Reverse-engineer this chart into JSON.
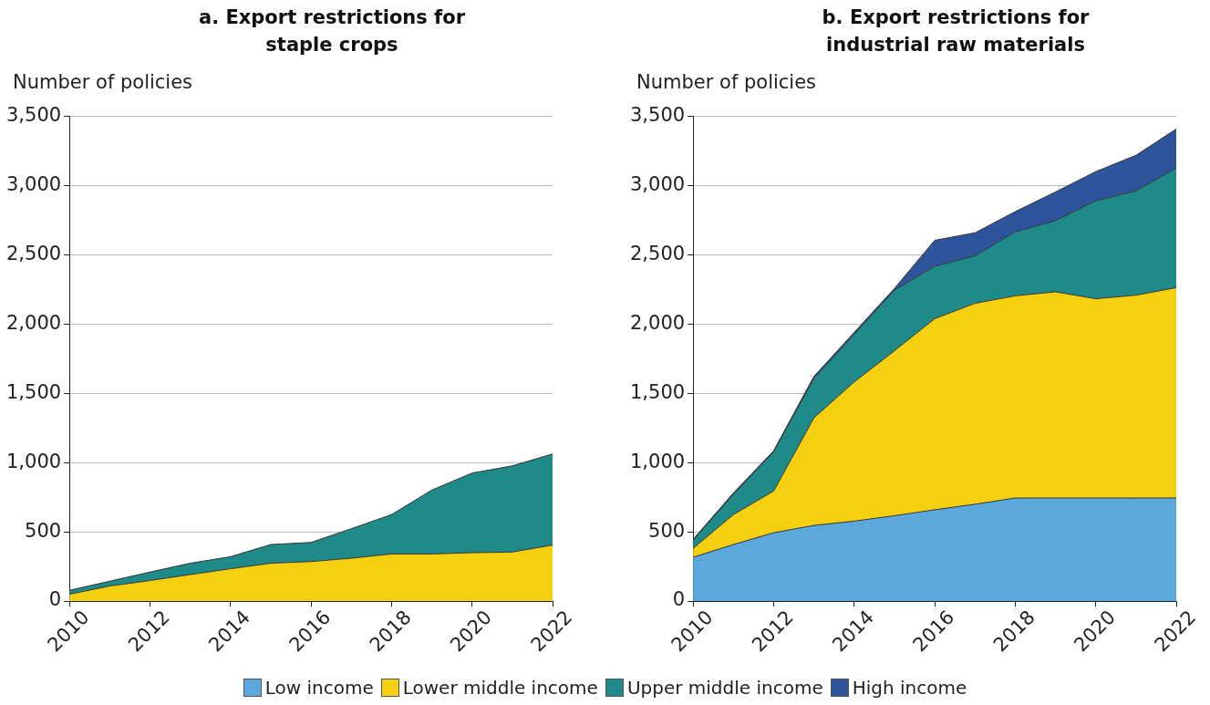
{
  "chart_data": [
    {
      "type": "area",
      "title": "a. Export restrictions for staple crops",
      "ylabel": "Number of policies",
      "x": [
        2010,
        2011,
        2012,
        2013,
        2014,
        2015,
        2016,
        2017,
        2018,
        2019,
        2020,
        2021,
        2022
      ],
      "xlim": [
        2010,
        2022
      ],
      "xticks": [
        2010,
        2012,
        2014,
        2016,
        2018,
        2020,
        2022
      ],
      "ylim": [
        0,
        3500
      ],
      "yticks": [
        {
          "value": 0,
          "label": "0"
        },
        {
          "value": 500,
          "label": "500"
        },
        {
          "value": 1000,
          "label": "1,000"
        },
        {
          "value": 1500,
          "label": "1,500"
        },
        {
          "value": 2000,
          "label": "2,000"
        },
        {
          "value": 2500,
          "label": "2,500"
        },
        {
          "value": 3000,
          "label": "3,000"
        },
        {
          "value": 3500,
          "label": "3,500"
        }
      ],
      "stacked": true,
      "grid": "y",
      "legend": "bottom",
      "series": [
        {
          "name": "Lower middle income",
          "color": "#f4d010",
          "values": [
            49,
            108,
            148,
            191,
            233,
            273,
            285,
            309,
            340,
            340,
            349,
            354,
            404
          ]
        },
        {
          "name": "Upper middle income",
          "color": "#1f8a8a",
          "values": [
            28,
            35,
            61,
            82,
            87,
            135,
            138,
            213,
            284,
            461,
            575,
            622,
            658
          ]
        }
      ]
    },
    {
      "type": "area",
      "title": "b. Export restrictions for industrial raw materials",
      "ylabel": "Number of policies",
      "x": [
        2010,
        2011,
        2012,
        2013,
        2014,
        2015,
        2016,
        2017,
        2018,
        2019,
        2020,
        2021,
        2022
      ],
      "xlim": [
        2010,
        2022
      ],
      "xticks": [
        2010,
        2012,
        2014,
        2016,
        2018,
        2020,
        2022
      ],
      "ylim": [
        0,
        3500
      ],
      "yticks": [
        {
          "value": 0,
          "label": "0"
        },
        {
          "value": 500,
          "label": "500"
        },
        {
          "value": 1000,
          "label": "1,000"
        },
        {
          "value": 1500,
          "label": "1,500"
        },
        {
          "value": 2000,
          "label": "2,000"
        },
        {
          "value": 2500,
          "label": "2,500"
        },
        {
          "value": 3000,
          "label": "3,000"
        },
        {
          "value": 3500,
          "label": "3,500"
        }
      ],
      "stacked": true,
      "grid": "y",
      "legend": "bottom",
      "series": [
        {
          "name": "Low income",
          "color": "#5ba8dc",
          "values": [
            316,
            408,
            493,
            546,
            577,
            616,
            659,
            699,
            744,
            744,
            744,
            744,
            744
          ]
        },
        {
          "name": "Lower middle income",
          "color": "#f4d010",
          "values": [
            64,
            216,
            301,
            776,
            1005,
            1191,
            1380,
            1451,
            1460,
            1489,
            1439,
            1465,
            1519
          ]
        },
        {
          "name": "Upper middle income",
          "color": "#1f8a8a",
          "values": [
            60,
            146,
            284,
            284,
            343,
            438,
            378,
            343,
            462,
            514,
            708,
            753,
            864
          ]
        },
        {
          "name": "High income",
          "color": "#2e559b",
          "values": [
            5,
            10,
            7,
            16,
            15,
            12,
            188,
            166,
            146,
            207,
            210,
            257,
            282
          ]
        }
      ]
    }
  ]
}
